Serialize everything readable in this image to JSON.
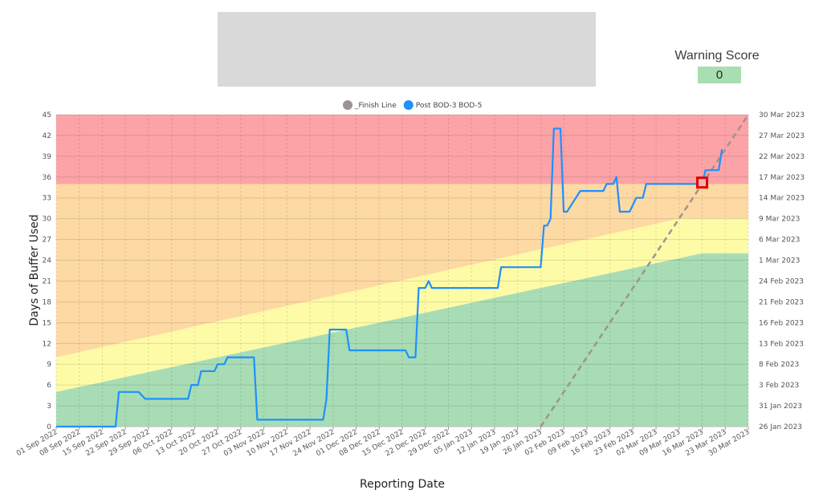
{
  "header": {
    "warning_title": "Warning Score",
    "warning_value": "0"
  },
  "chart_data": {
    "type": "line",
    "xlabel": "Reporting Date",
    "ylabel": "Days of Buffer Used",
    "ylim": [
      0,
      45
    ],
    "y_ticks": [
      0,
      3,
      6,
      9,
      12,
      15,
      18,
      21,
      24,
      27,
      30,
      33,
      36,
      39,
      42,
      45
    ],
    "x_ticks": [
      "01 Sep 2022",
      "08 Sep 2022",
      "15 Sep 2022",
      "22 Sep 2022",
      "29 Sep 2022",
      "06 Oct 2022",
      "13 Oct 2022",
      "20 Oct 2022",
      "27 Oct 2022",
      "03 Nov 2022",
      "10 Nov 2022",
      "17 Nov 2022",
      "24 Nov 2022",
      "01 Dec 2022",
      "08 Dec 2022",
      "15 Dec 2022",
      "22 Dec 2022",
      "29 Dec 2022",
      "05 Jan 2023",
      "12 Jan 2023",
      "19 Jan 2023",
      "26 Jan 2023",
      "02 Feb 2023",
      "09 Feb 2023",
      "16 Feb 2023",
      "23 Feb 2023",
      "02 Mar 2023",
      "09 Mar 2023",
      "16 Mar 2023",
      "23 Mar 2023",
      "30 Mar 2023"
    ],
    "y2_ticks": [
      "26 Jan 2023",
      "31 Jan 2023",
      "3 Feb 2023",
      "8 Feb 2023",
      "13 Feb 2023",
      "16 Feb 2023",
      "21 Feb 2023",
      "24 Feb 2023",
      "1 Mar 2023",
      "6 Mar 2023",
      "9 Mar 2023",
      "14 Mar 2023",
      "17 Mar 2023",
      "22 Mar 2023",
      "27 Mar 2023",
      "30 Mar 2023"
    ],
    "legend": [
      {
        "name": "_Finish Line",
        "color": "#9e9393"
      },
      {
        "name": "Post BOD-3 BOD-5",
        "color": "#1e90ff"
      }
    ],
    "zones": {
      "green_upper": {
        "start": 5,
        "end": 25,
        "end_date": "16 Mar 2023"
      },
      "yellow_upper": {
        "start": 10,
        "end": 30,
        "end_date": "09 Mar 2023"
      },
      "red_lower": 35,
      "colors": {
        "green": "#a8dcb4",
        "yellow": "#fdfba6",
        "orange": "#fdd9a3",
        "red": "#fca3a7"
      }
    },
    "finish_line": {
      "points": [
        [
          "26 Jan 2023",
          0
        ],
        [
          "30 Mar 2023",
          45
        ]
      ],
      "color": "#9e9393"
    },
    "series": [
      {
        "name": "Post BOD-3 BOD-5",
        "color": "#1e90ff",
        "points": [
          [
            "01 Sep 2022",
            0
          ],
          [
            "15 Sep 2022",
            0
          ],
          [
            "19 Sep 2022",
            0
          ],
          [
            "20 Sep 2022",
            5
          ],
          [
            "26 Sep 2022",
            5
          ],
          [
            "28 Sep 2022",
            4
          ],
          [
            "11 Oct 2022",
            4
          ],
          [
            "12 Oct 2022",
            6
          ],
          [
            "14 Oct 2022",
            6
          ],
          [
            "15 Oct 2022",
            8
          ],
          [
            "19 Oct 2022",
            8
          ],
          [
            "20 Oct 2022",
            9
          ],
          [
            "22 Oct 2022",
            9
          ],
          [
            "23 Oct 2022",
            10
          ],
          [
            "31 Oct 2022",
            10
          ],
          [
            "01 Nov 2022",
            1
          ],
          [
            "21 Nov 2022",
            1
          ],
          [
            "22 Nov 2022",
            4
          ],
          [
            "23 Nov 2022",
            14
          ],
          [
            "28 Nov 2022",
            14
          ],
          [
            "29 Nov 2022",
            11
          ],
          [
            "16 Dec 2022",
            11
          ],
          [
            "17 Dec 2022",
            10
          ],
          [
            "19 Dec 2022",
            10
          ],
          [
            "20 Dec 2022",
            20
          ],
          [
            "22 Dec 2022",
            20
          ],
          [
            "23 Dec 2022",
            21
          ],
          [
            "24 Dec 2022",
            20
          ],
          [
            "13 Jan 2023",
            20
          ],
          [
            "14 Jan 2023",
            23
          ],
          [
            "18 Jan 2023",
            23
          ],
          [
            "19 Jan 2023",
            23
          ],
          [
            "26 Jan 2023",
            23
          ],
          [
            "27 Jan 2023",
            29
          ],
          [
            "28 Jan 2023",
            29
          ],
          [
            "29 Jan 2023",
            30
          ],
          [
            "30 Jan 2023",
            43
          ],
          [
            "01 Feb 2023",
            43
          ],
          [
            "02 Feb 2023",
            31
          ],
          [
            "03 Feb 2023",
            31
          ],
          [
            "07 Feb 2023",
            34
          ],
          [
            "14 Feb 2023",
            34
          ],
          [
            "15 Feb 2023",
            35
          ],
          [
            "17 Feb 2023",
            35
          ],
          [
            "18 Feb 2023",
            36
          ],
          [
            "19 Feb 2023",
            31
          ],
          [
            "22 Feb 2023",
            31
          ],
          [
            "24 Feb 2023",
            33
          ],
          [
            "26 Feb 2023",
            33
          ],
          [
            "27 Feb 2023",
            35
          ],
          [
            "16 Mar 2023",
            35
          ],
          [
            "17 Mar 2023",
            37
          ],
          [
            "21 Mar 2023",
            37
          ],
          [
            "22 Mar 2023",
            40
          ]
        ]
      }
    ],
    "highlight_marker": {
      "date": "16 Mar 2023",
      "value": 35.2,
      "color": "#e00000"
    }
  }
}
